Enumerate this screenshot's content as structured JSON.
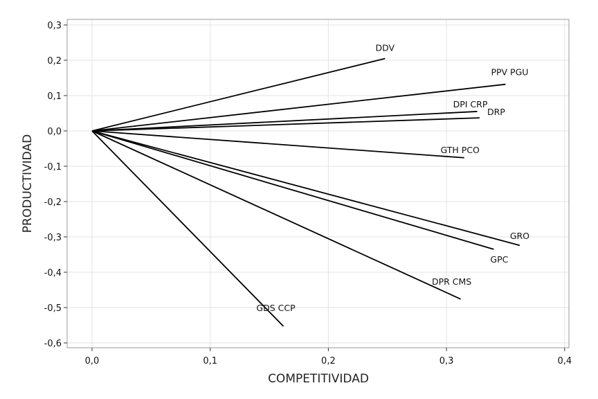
{
  "chart_data": {
    "type": "scatter",
    "xlabel": "COMPETITIVIDAD",
    "ylabel": "PRODUCTIVIDAD",
    "xlim": [
      -0.022,
      0.4
    ],
    "ylim": [
      -0.6,
      0.3
    ],
    "x_ticks": [
      "0,0",
      "0,1",
      "0,2",
      "0,3",
      "0,4"
    ],
    "x_tick_values": [
      0.0,
      0.1,
      0.2,
      0.3,
      0.4
    ],
    "y_ticks": [
      "0,3",
      "0,2",
      "0,1",
      "0,0",
      "-0,1",
      "-0,2",
      "-0,3",
      "-0,4",
      "-0,5",
      "-0,6"
    ],
    "y_tick_values": [
      0.3,
      0.2,
      0.1,
      0.0,
      -0.1,
      -0.2,
      -0.3,
      -0.4,
      -0.5,
      -0.6
    ],
    "grid": true,
    "origin": [
      0.0,
      0.0
    ],
    "vectors": [
      {
        "label": "DDV",
        "x": 0.248,
        "y": 0.205
      },
      {
        "label": "PPV PGU",
        "x": 0.35,
        "y": 0.132
      },
      {
        "label": "DPI CRP",
        "x": 0.326,
        "y": 0.055
      },
      {
        "label": "DRP",
        "x": 0.328,
        "y": 0.037
      },
      {
        "label": "GTH PCO",
        "x": 0.315,
        "y": -0.076
      },
      {
        "label": "GRO",
        "x": 0.362,
        "y": -0.324
      },
      {
        "label": "GPC",
        "x": 0.34,
        "y": -0.335
      },
      {
        "label": "DPR CMS",
        "x": 0.312,
        "y": -0.476
      },
      {
        "label": "GDS CCP",
        "x": 0.162,
        "y": -0.553
      }
    ]
  }
}
